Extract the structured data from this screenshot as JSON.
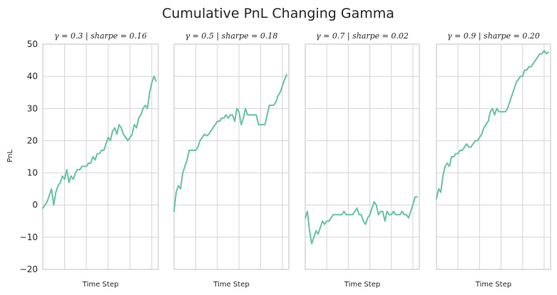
{
  "figure_title": "Cumulative PnL Changing Gamma",
  "chart_data": {
    "type": "line",
    "ylabel": "PnL",
    "xlabel": "Time Step",
    "ylim": [
      -20,
      50
    ],
    "yticks": [
      -20,
      -10,
      0,
      10,
      20,
      30,
      40,
      50
    ],
    "x_gridlines": [
      10,
      20,
      30,
      40,
      50
    ],
    "xlim": [
      0,
      53
    ],
    "grid": true,
    "series_color": "#66c2a5",
    "panels": [
      {
        "title": "γ = 0.3 | sharpe = 0.16",
        "x": [
          0,
          1,
          2,
          3,
          4,
          5,
          6,
          7,
          8,
          9,
          10,
          11,
          12,
          13,
          14,
          15,
          16,
          17,
          18,
          19,
          20,
          21,
          22,
          23,
          24,
          25,
          26,
          27,
          28,
          29,
          30,
          31,
          32,
          33,
          34,
          35,
          36,
          37,
          38,
          39,
          40,
          41,
          42,
          43,
          44,
          45,
          46,
          47,
          48,
          49,
          50,
          51,
          52
        ],
        "values": [
          -1,
          0,
          1,
          3,
          5,
          0,
          4,
          6,
          7,
          9,
          8,
          11,
          7,
          9,
          8,
          10,
          11,
          11,
          12,
          12,
          12,
          13,
          13,
          15,
          14,
          16,
          16,
          17,
          17,
          19,
          21,
          20,
          23,
          24,
          22,
          25,
          24,
          22,
          21,
          20,
          21,
          22,
          25,
          24,
          27,
          28,
          30,
          31,
          30,
          35,
          38,
          40,
          38.5
        ]
      },
      {
        "title": "γ = 0.5 | sharpe = 0.18",
        "x": [
          0,
          1,
          2,
          3,
          4,
          5,
          6,
          7,
          8,
          9,
          10,
          11,
          12,
          13,
          14,
          15,
          16,
          17,
          18,
          19,
          20,
          21,
          22,
          23,
          24,
          25,
          26,
          27,
          28,
          29,
          30,
          31,
          32,
          33,
          34,
          35,
          36,
          37,
          38,
          39,
          40,
          41,
          42,
          43,
          44,
          45,
          46,
          47,
          48,
          49,
          50,
          51,
          52
        ],
        "values": [
          -2,
          4,
          6,
          5,
          10,
          12,
          14,
          17,
          17,
          17,
          17,
          18,
          20,
          21,
          22,
          21.5,
          22,
          23,
          24,
          25,
          26,
          26,
          27,
          27,
          28,
          27,
          28,
          28,
          26,
          30,
          29,
          25,
          27,
          30,
          28,
          28,
          28,
          28,
          28,
          25,
          25,
          25,
          25,
          28,
          31,
          31,
          31,
          32,
          34,
          35,
          37,
          39,
          40.5
        ]
      },
      {
        "title": "γ = 0.7 | sharpe = 0.02",
        "x": [
          0,
          1,
          2,
          3,
          4,
          5,
          6,
          7,
          8,
          9,
          10,
          11,
          12,
          13,
          14,
          15,
          16,
          17,
          18,
          19,
          20,
          21,
          22,
          23,
          24,
          25,
          26,
          27,
          28,
          29,
          30,
          31,
          32,
          33,
          34,
          35,
          36,
          37,
          38,
          39,
          40,
          41,
          42,
          43,
          44,
          45,
          46,
          47,
          48,
          49,
          50,
          51,
          52
        ],
        "values": [
          -4,
          -2,
          -8,
          -12,
          -10,
          -8,
          -9,
          -7,
          -5,
          -6,
          -5,
          -5,
          -4,
          -3,
          -3,
          -3,
          -3,
          -3,
          -2,
          -3,
          -3,
          -3,
          -3,
          -2,
          -1,
          -3,
          -3,
          -5,
          -6,
          -4,
          -3,
          -1,
          1,
          0,
          -3,
          -2,
          -2,
          -5,
          -2,
          -3,
          -3,
          -2,
          -3,
          -3,
          -3,
          -2,
          -3,
          -3,
          -4,
          -2,
          0,
          2.5,
          2.5
        ]
      },
      {
        "title": "γ = 0.9 | sharpe = 0.20",
        "x": [
          0,
          1,
          2,
          3,
          4,
          5,
          6,
          7,
          8,
          9,
          10,
          11,
          12,
          13,
          14,
          15,
          16,
          17,
          18,
          19,
          20,
          21,
          22,
          23,
          24,
          25,
          26,
          27,
          28,
          29,
          30,
          31,
          32,
          33,
          34,
          35,
          36,
          37,
          38,
          39,
          40,
          41,
          42,
          43,
          44,
          45,
          46,
          47,
          48,
          49,
          50,
          51,
          52
        ],
        "values": [
          2,
          5,
          4,
          9,
          12,
          13,
          12,
          15,
          15,
          16,
          16,
          17,
          17,
          18,
          19,
          18,
          18,
          19,
          20,
          20,
          21,
          22,
          24,
          25,
          26,
          29,
          30,
          28,
          30,
          29,
          29,
          29,
          29,
          30,
          32,
          34,
          36,
          38,
          39,
          40,
          40,
          42,
          42,
          43,
          43,
          44,
          45,
          46,
          47,
          47,
          48,
          47,
          47.5
        ]
      }
    ]
  }
}
